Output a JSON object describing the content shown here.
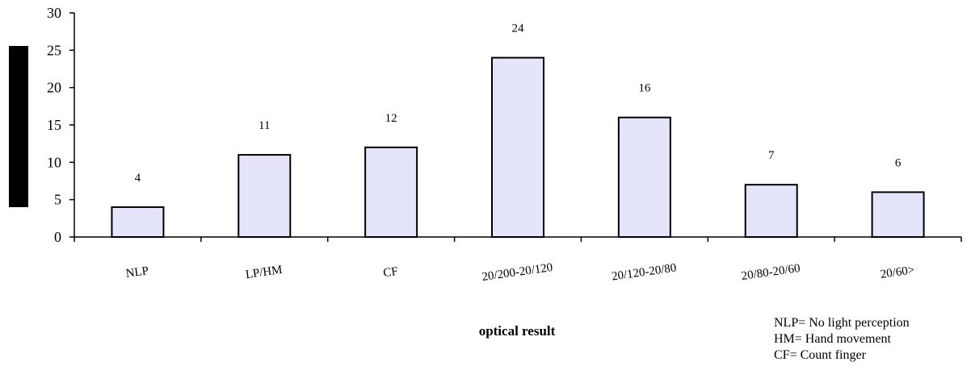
{
  "chart_data": {
    "type": "bar",
    "categories": [
      "NLP",
      "LP/HM",
      "CF",
      "20/200-20/120",
      "20/120-20/80",
      "20/80-20/60",
      "20/60>"
    ],
    "values": [
      4,
      11,
      12,
      24,
      16,
      7,
      6
    ],
    "data_labels": [
      "4",
      "11",
      "12",
      "24",
      "16",
      "7",
      "6"
    ],
    "xlabel": "optical result",
    "ylabel": "",
    "ylim": [
      0,
      30
    ],
    "yticks": [
      "0",
      "5",
      "10",
      "15",
      "20",
      "25",
      "30"
    ],
    "grid": false,
    "bar_fill": "#e4e4fb",
    "bar_stroke": "#000000",
    "legend_notes": [
      "NLP= No light perception",
      "HM= Hand movement",
      "CF= Count finger"
    ]
  }
}
